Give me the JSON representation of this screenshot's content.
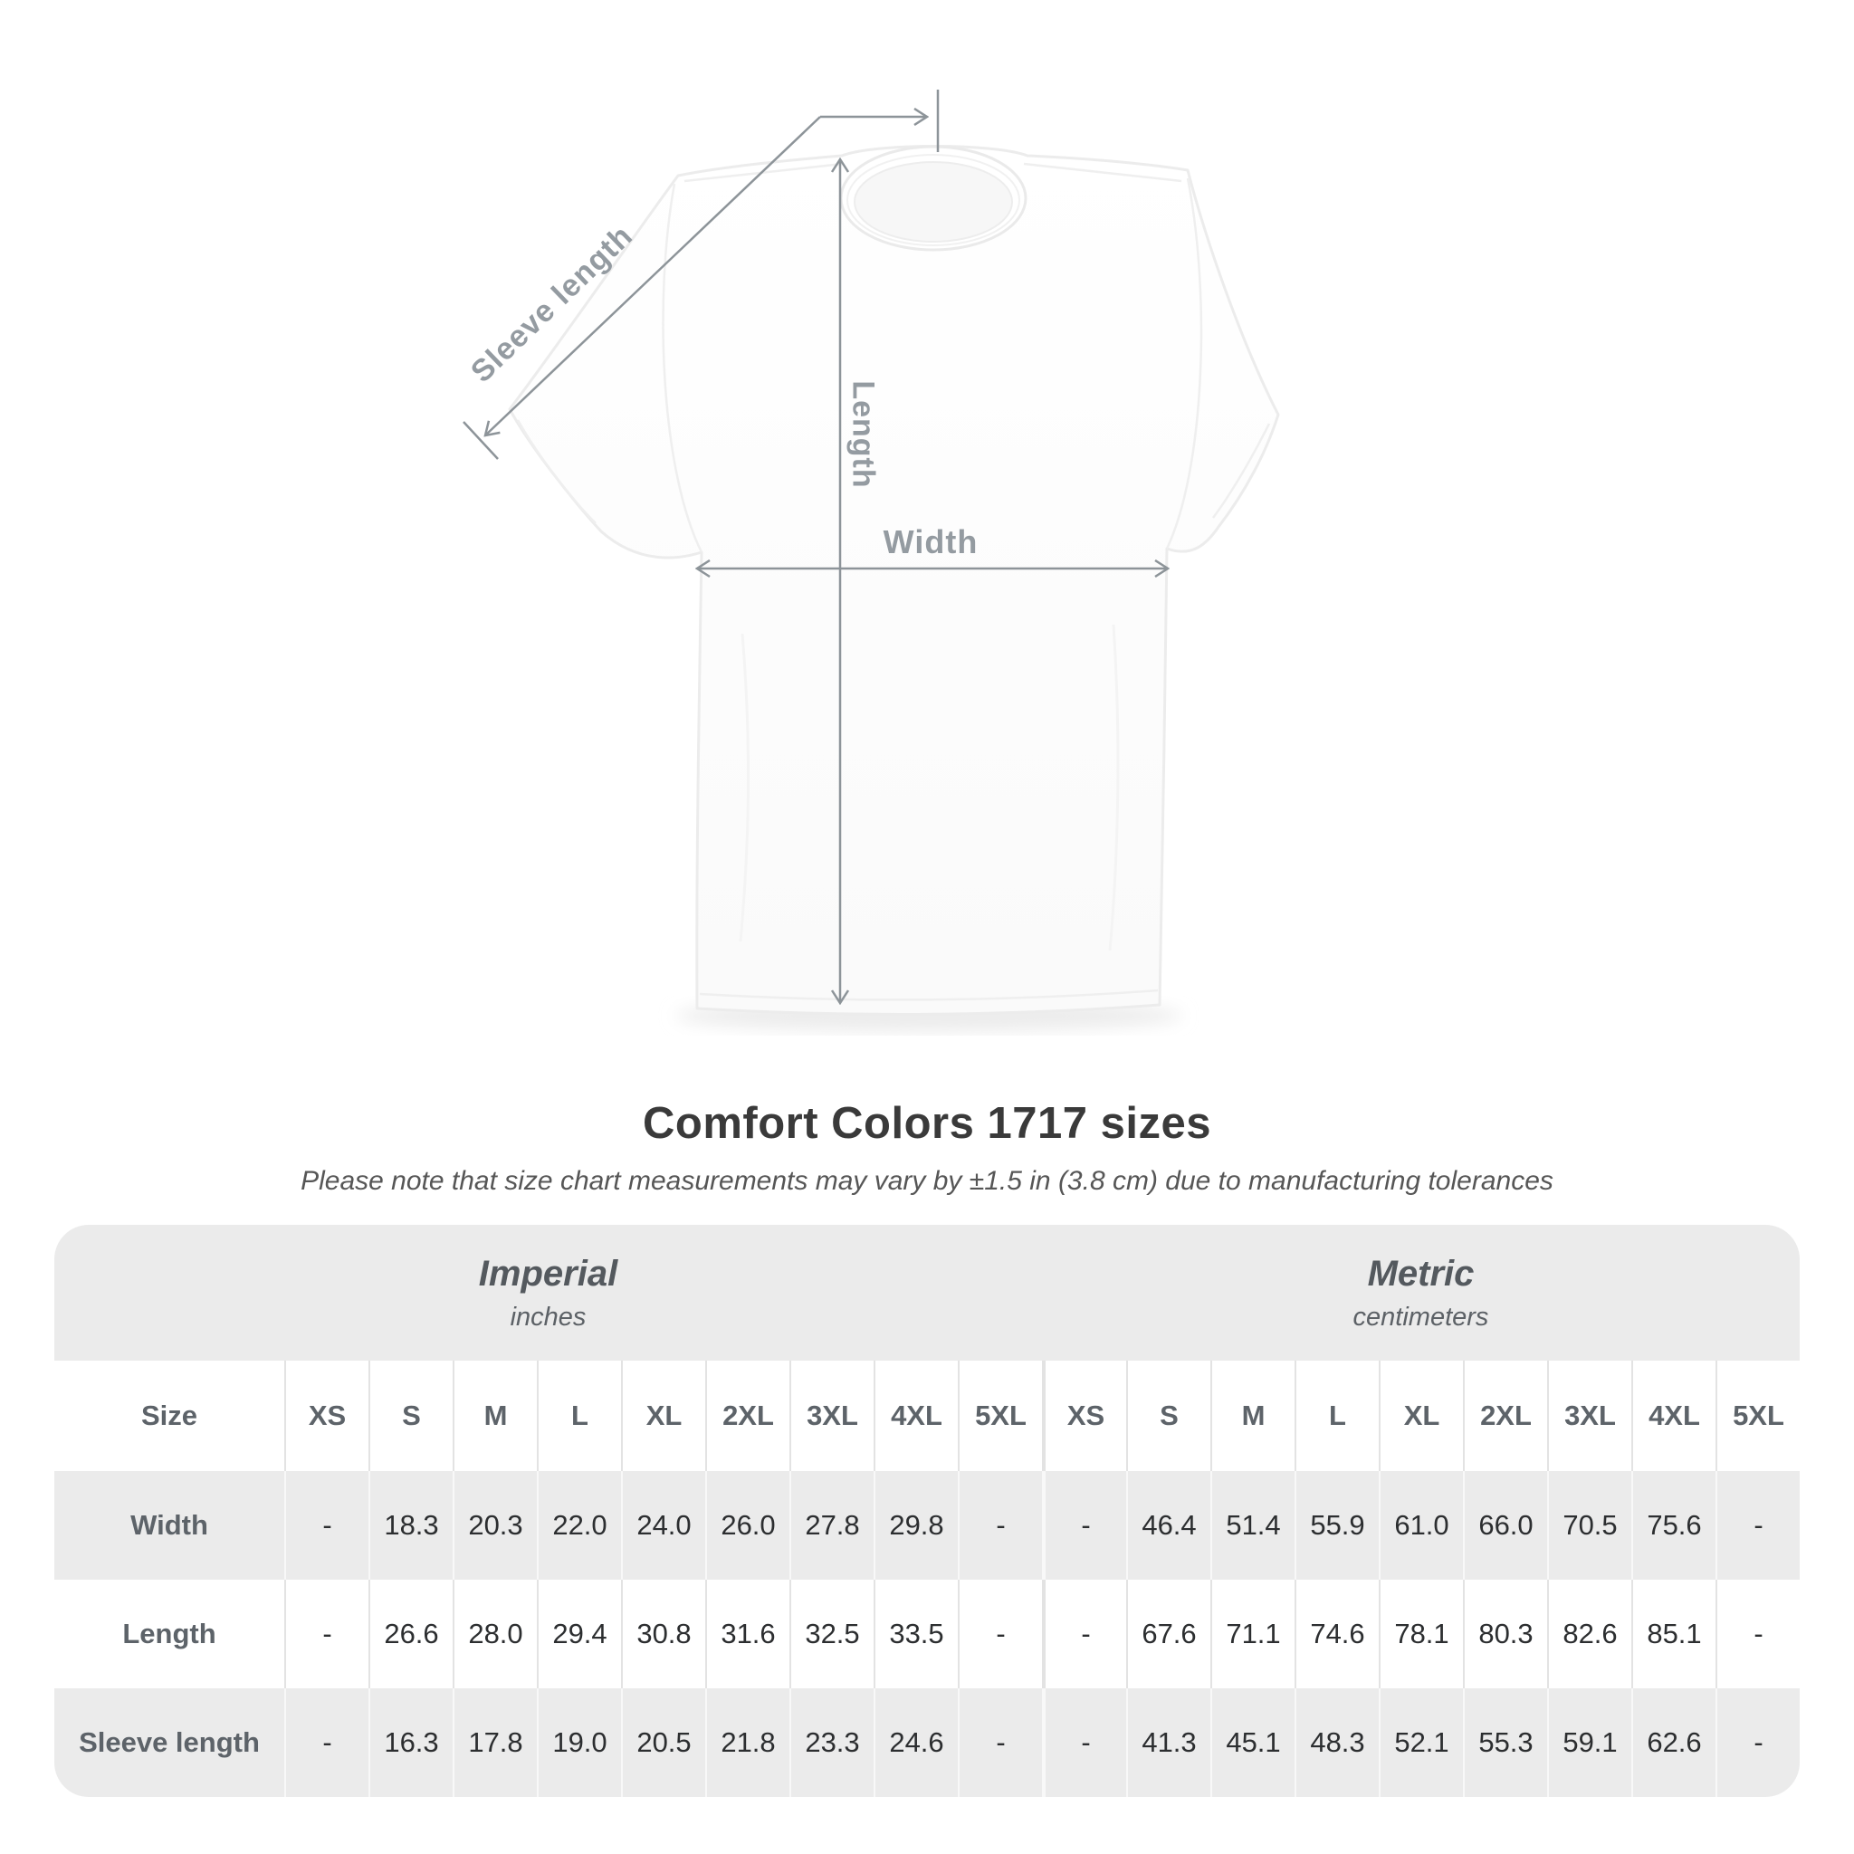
{
  "diagram": {
    "sleeve_label": "Sleeve length",
    "length_label": "Length",
    "width_label": "Width"
  },
  "title": "Comfort Colors 1717 sizes",
  "subtitle": "Please note that size chart measurements may vary by ±1.5 in (3.8 cm) due to manufacturing tolerances",
  "table": {
    "size_header": "Size",
    "unit_groups": [
      {
        "name": "Imperial",
        "unit": "inches"
      },
      {
        "name": "Metric",
        "unit": "centimeters"
      }
    ],
    "columns": [
      "XS",
      "S",
      "M",
      "L",
      "XL",
      "2XL",
      "3XL",
      "4XL",
      "5XL",
      "XS",
      "S",
      "M",
      "L",
      "XL",
      "2XL",
      "3XL",
      "4XL",
      "5XL"
    ],
    "rows": [
      {
        "label": "Width",
        "values": [
          "-",
          "18.3",
          "20.3",
          "22.0",
          "24.0",
          "26.0",
          "27.8",
          "29.8",
          "-",
          "-",
          "46.4",
          "51.4",
          "55.9",
          "61.0",
          "66.0",
          "70.5",
          "75.6",
          "-"
        ]
      },
      {
        "label": "Length",
        "values": [
          "-",
          "26.6",
          "28.0",
          "29.4",
          "30.8",
          "31.6",
          "32.5",
          "33.5",
          "-",
          "-",
          "67.6",
          "71.1",
          "74.6",
          "78.1",
          "80.3",
          "82.6",
          "85.1",
          "-"
        ]
      },
      {
        "label": "Sleeve length",
        "values": [
          "-",
          "16.3",
          "17.8",
          "19.0",
          "20.5",
          "21.8",
          "23.3",
          "24.6",
          "-",
          "-",
          "41.3",
          "45.1",
          "48.3",
          "52.1",
          "55.3",
          "59.1",
          "62.6",
          "-"
        ]
      }
    ]
  },
  "chart_data": {
    "type": "table",
    "title": "Comfort Colors 1717 sizes",
    "note": "Please note that size chart measurements may vary by ±1.5 in (3.8 cm) due to manufacturing tolerances",
    "column_groups": [
      {
        "label": "Imperial",
        "unit": "inches"
      },
      {
        "label": "Metric",
        "unit": "centimeters"
      }
    ],
    "sizes": [
      "XS",
      "S",
      "M",
      "L",
      "XL",
      "2XL",
      "3XL",
      "4XL",
      "5XL"
    ],
    "rows": [
      {
        "measurement": "Width",
        "imperial_inches": [
          null,
          18.3,
          20.3,
          22.0,
          24.0,
          26.0,
          27.8,
          29.8,
          null
        ],
        "metric_centimeters": [
          null,
          46.4,
          51.4,
          55.9,
          61.0,
          66.0,
          70.5,
          75.6,
          null
        ]
      },
      {
        "measurement": "Length",
        "imperial_inches": [
          null,
          26.6,
          28.0,
          29.4,
          30.8,
          31.6,
          32.5,
          33.5,
          null
        ],
        "metric_centimeters": [
          null,
          67.6,
          71.1,
          74.6,
          78.1,
          80.3,
          82.6,
          85.1,
          null
        ]
      },
      {
        "measurement": "Sleeve length",
        "imperial_inches": [
          null,
          16.3,
          17.8,
          19.0,
          20.5,
          21.8,
          23.3,
          24.6,
          null
        ],
        "metric_centimeters": [
          null,
          41.3,
          45.1,
          48.3,
          52.1,
          55.3,
          59.1,
          62.6,
          null
        ]
      }
    ]
  }
}
